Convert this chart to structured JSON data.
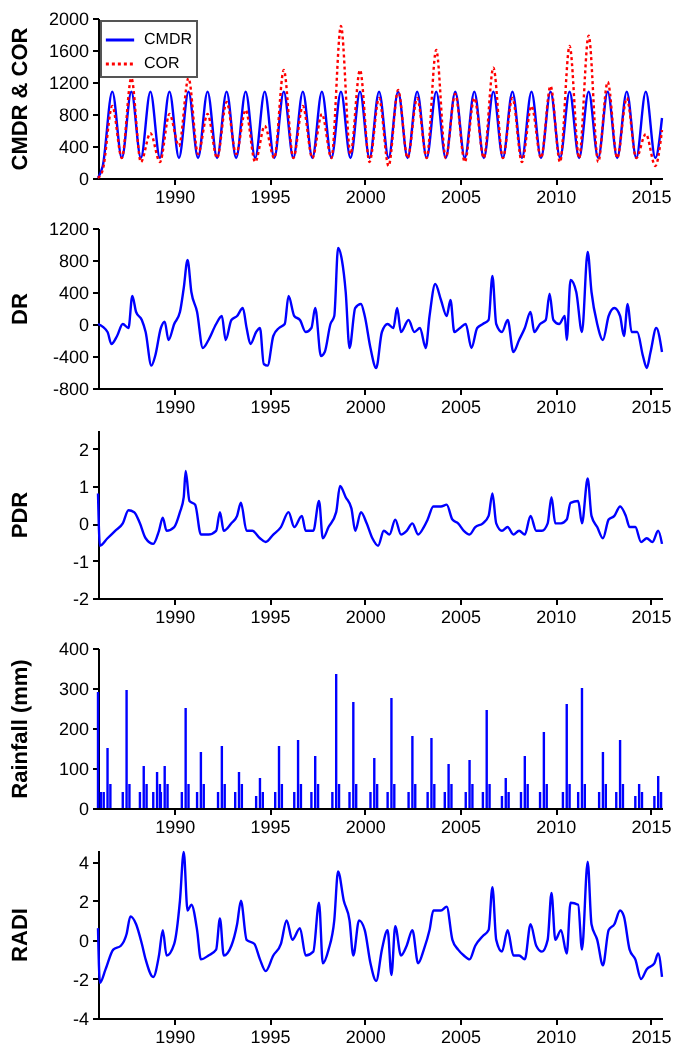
{
  "chart_data": [
    {
      "type": "line",
      "ylabel": "CMDR & COR",
      "xlim": [
        1986,
        2015.6
      ],
      "xticks": [
        1990,
        1995,
        2000,
        2005,
        2010,
        2015
      ],
      "ylim": [
        0,
        2000
      ],
      "yticks": [
        0,
        400,
        800,
        1200,
        1600,
        2000
      ],
      "legend": "top left",
      "x": [
        1986,
        1986.25,
        1986.75,
        1987.25,
        1987.75,
        1988.25,
        1988.75,
        1989.25,
        1989.75,
        1990.25,
        1990.75,
        1991.25,
        1991.75,
        1992.25,
        1992.75,
        1993.25,
        1993.75,
        1994.25,
        1994.75,
        1995.25,
        1995.75,
        1996.25,
        1996.75,
        1997.25,
        1997.75,
        1998.25,
        1998.75,
        1999.25,
        1999.75,
        2000.25,
        2000.75,
        2001.25,
        2001.75,
        2002.25,
        2002.75,
        2003.25,
        2003.75,
        2004.25,
        2004.75,
        2005.25,
        2005.75,
        2006.25,
        2006.75,
        2007.25,
        2007.75,
        2008.25,
        2008.75,
        2009.25,
        2009.75,
        2010.25,
        2010.75,
        2011.25,
        2011.75,
        2012.25,
        2012.75,
        2013.25,
        2013.75,
        2014.25,
        2014.75,
        2015.25,
        2015.6
      ],
      "series": [
        {
          "name": "CMDR",
          "color": "#0000ff",
          "line_style": "solid",
          "values": [
            0,
            150,
            1080,
            250,
            1080,
            250,
            1080,
            250,
            1080,
            250,
            1080,
            250,
            1080,
            250,
            1080,
            250,
            1080,
            250,
            1080,
            250,
            1080,
            250,
            1080,
            250,
            1080,
            250,
            1080,
            250,
            1080,
            250,
            1080,
            250,
            1080,
            250,
            1080,
            250,
            1080,
            250,
            1080,
            250,
            1080,
            250,
            1080,
            250,
            1080,
            250,
            1080,
            250,
            1080,
            250,
            1080,
            250,
            1080,
            250,
            1080,
            250,
            1080,
            250,
            1080,
            250,
            750
          ]
        },
        {
          "name": "COR",
          "color": "#ff0000",
          "line_style": "dotted",
          "values": [
            0,
            100,
            900,
            250,
            1250,
            200,
            560,
            200,
            800,
            400,
            1250,
            300,
            800,
            250,
            950,
            300,
            850,
            200,
            650,
            250,
            1350,
            250,
            900,
            250,
            800,
            250,
            1900,
            300,
            1350,
            200,
            1000,
            150,
            1100,
            250,
            1000,
            250,
            1600,
            250,
            1050,
            200,
            1000,
            250,
            1380,
            250,
            1000,
            200,
            900,
            250,
            1150,
            200,
            1650,
            250,
            1780,
            200,
            1200,
            250,
            1000,
            250,
            550,
            150,
            600
          ]
        }
      ]
    },
    {
      "type": "line",
      "ylabel": "DR",
      "xlim": [
        1986,
        2015.6
      ],
      "xticks": [
        1990,
        1995,
        2000,
        2005,
        2010,
        2015
      ],
      "ylim": [
        -800,
        1200
      ],
      "yticks": [
        -800,
        -400,
        0,
        400,
        800,
        1200
      ],
      "x": [
        1986.0,
        1986.5,
        1986.7,
        1987.0,
        1987.3,
        1987.6,
        1987.8,
        1988.0,
        1988.3,
        1988.5,
        1988.8,
        1989.0,
        1989.3,
        1989.5,
        1989.7,
        1990.0,
        1990.3,
        1990.5,
        1990.7,
        1990.9,
        1991.2,
        1991.5,
        1991.8,
        1992.2,
        1992.5,
        1992.7,
        1993.0,
        1993.3,
        1993.6,
        1993.8,
        1994.0,
        1994.3,
        1994.5,
        1994.7,
        1994.9,
        1995.2,
        1995.5,
        1995.8,
        1996.0,
        1996.3,
        1996.6,
        1996.9,
        1997.2,
        1997.4,
        1997.7,
        1997.9,
        1998.2,
        1998.4,
        1998.6,
        1998.8,
        1999.0,
        1999.2,
        1999.5,
        1999.8,
        2000.0,
        2000.3,
        2000.6,
        2000.9,
        2001.2,
        2001.5,
        2001.7,
        2001.9,
        2002.3,
        2002.6,
        2002.9,
        2003.2,
        2003.4,
        2003.7,
        2004.0,
        2004.3,
        2004.5,
        2004.7,
        2005.0,
        2005.3,
        2005.6,
        2005.9,
        2006.2,
        2006.5,
        2006.7,
        2006.9,
        2007.2,
        2007.5,
        2007.8,
        2008.1,
        2008.4,
        2008.7,
        2008.9,
        2009.2,
        2009.5,
        2009.7,
        2009.9,
        2010.2,
        2010.5,
        2010.6,
        2010.8,
        2011.1,
        2011.4,
        2011.7,
        2011.9,
        2012.2,
        2012.5,
        2012.8,
        2013.1,
        2013.4,
        2013.6,
        2013.8,
        2014.0,
        2014.3,
        2014.6,
        2014.8,
        2015.0,
        2015.3,
        2015.6
      ],
      "series": [
        {
          "color": "#0000ff",
          "values": [
            0,
            -100,
            -250,
            -150,
            0,
            -50,
            350,
            150,
            50,
            -100,
            -520,
            -400,
            -50,
            30,
            -200,
            0,
            150,
            450,
            800,
            400,
            150,
            -300,
            -200,
            0,
            100,
            -200,
            50,
            100,
            200,
            -50,
            -250,
            -100,
            -50,
            -500,
            -520,
            -150,
            -50,
            0,
            350,
            100,
            50,
            -100,
            -50,
            200,
            -400,
            -350,
            0,
            100,
            950,
            800,
            400,
            -300,
            200,
            250,
            100,
            -300,
            -550,
            -100,
            0,
            -50,
            200,
            -100,
            50,
            -100,
            -50,
            -300,
            100,
            500,
            300,
            100,
            300,
            -100,
            -50,
            0,
            -300,
            -50,
            0,
            50,
            600,
            0,
            -100,
            50,
            -350,
            -200,
            -50,
            150,
            -100,
            0,
            50,
            380,
            50,
            0,
            100,
            -200,
            550,
            400,
            -100,
            900,
            400,
            0,
            -200,
            100,
            200,
            100,
            -150,
            250,
            -100,
            -100,
            -400,
            -550,
            -350,
            -50,
            -350
          ]
        }
      ]
    },
    {
      "type": "line",
      "ylabel": "PDR",
      "xlim": [
        1986,
        2015.6
      ],
      "xticks": [
        1990,
        1995,
        2000,
        2005,
        2010,
        2015
      ],
      "ylim": [
        -2,
        2.5
      ],
      "yticks": [
        -2,
        -1,
        0,
        1,
        2
      ],
      "x": [
        1986.0,
        1986.1,
        1986.5,
        1986.9,
        1987.3,
        1987.6,
        1987.9,
        1988.2,
        1988.5,
        1988.9,
        1989.2,
        1989.4,
        1989.6,
        1990.0,
        1990.3,
        1990.5,
        1990.6,
        1990.8,
        1991.1,
        1991.4,
        1991.8,
        1992.2,
        1992.4,
        1992.6,
        1993.0,
        1993.3,
        1993.5,
        1993.8,
        1994.1,
        1994.5,
        1994.8,
        1995.2,
        1995.6,
        1996.0,
        1996.3,
        1996.7,
        1996.9,
        1997.3,
        1997.6,
        1997.8,
        1998.1,
        1998.5,
        1998.7,
        1999.0,
        1999.3,
        1999.5,
        1999.8,
        2000.1,
        2000.4,
        2000.7,
        2001.0,
        2001.3,
        2001.6,
        2001.9,
        2002.2,
        2002.5,
        2002.8,
        2003.1,
        2003.3,
        2003.6,
        2004.0,
        2004.3,
        2004.6,
        2004.9,
        2005.2,
        2005.5,
        2005.8,
        2006.2,
        2006.5,
        2006.7,
        2006.9,
        2007.2,
        2007.5,
        2007.8,
        2008.1,
        2008.4,
        2008.7,
        2009.0,
        2009.3,
        2009.6,
        2009.8,
        2010.0,
        2010.3,
        2010.6,
        2010.8,
        2011.2,
        2011.4,
        2011.7,
        2011.9,
        2012.2,
        2012.5,
        2012.8,
        2013.1,
        2013.4,
        2013.7,
        2013.9,
        2014.2,
        2014.5,
        2014.8,
        2015.1,
        2015.4,
        2015.6
      ],
      "series": [
        {
          "color": "#0000ff",
          "values": [
            0.8,
            -0.6,
            -0.4,
            -0.2,
            0,
            0.35,
            0.3,
            0,
            -0.4,
            -0.55,
            -0.2,
            0.15,
            -0.2,
            -0.1,
            0.3,
            0.7,
            1.4,
            0.6,
            0.5,
            -0.3,
            -0.3,
            -0.2,
            0.3,
            -0.2,
            0,
            0.2,
            0.55,
            -0.2,
            -0.2,
            -0.4,
            -0.5,
            -0.3,
            -0.1,
            0.3,
            -0.1,
            0.2,
            -0.2,
            -0.2,
            0.6,
            -0.4,
            -0.1,
            0.3,
            1.0,
            0.7,
            0.4,
            -0.2,
            0.3,
            0,
            -0.4,
            -0.6,
            -0.2,
            -0.3,
            0.1,
            -0.3,
            -0.2,
            0,
            -0.3,
            -0.1,
            0.1,
            0.45,
            0.45,
            0.5,
            0.1,
            0,
            -0.2,
            -0.3,
            -0.1,
            0,
            0.2,
            0.8,
            0,
            -0.2,
            -0.1,
            -0.3,
            -0.2,
            -0.3,
            0.2,
            -0.2,
            -0.2,
            0,
            0.7,
            0,
            0,
            0.1,
            0.55,
            0.6,
            0,
            1.2,
            0.2,
            -0.1,
            -0.4,
            0.1,
            0.2,
            0.45,
            0.2,
            -0.1,
            -0.1,
            -0.5,
            -0.4,
            -0.5,
            -0.2,
            -0.55
          ]
        }
      ]
    },
    {
      "type": "bar",
      "ylabel": "Rainfall (mm)",
      "xlim": [
        1986,
        2015.6
      ],
      "xticks": [
        1990,
        1995,
        2000,
        2005,
        2010,
        2015
      ],
      "ylim": [
        0,
        400
      ],
      "yticks": [
        0,
        100,
        200,
        300,
        400
      ],
      "color": "#0000ff",
      "x": [
        1986.0,
        1986.15,
        1986.3,
        1986.5,
        1986.65,
        1987.3,
        1987.5,
        1987.65,
        1988.2,
        1988.4,
        1988.55,
        1988.9,
        1989.1,
        1989.25,
        1989.3,
        1989.5,
        1989.65,
        1990.4,
        1990.6,
        1990.75,
        1991.2,
        1991.4,
        1991.55,
        1992.3,
        1992.5,
        1992.65,
        1993.2,
        1993.4,
        1993.55,
        1994.3,
        1994.5,
        1994.65,
        1995.3,
        1995.5,
        1995.65,
        1996.3,
        1996.5,
        1996.65,
        1997.2,
        1997.4,
        1997.55,
        1998.3,
        1998.5,
        1998.65,
        1999.2,
        1999.4,
        1999.55,
        2000.3,
        2000.5,
        2000.65,
        2001.2,
        2001.4,
        2001.55,
        2002.3,
        2002.5,
        2002.65,
        2003.3,
        2003.5,
        2003.65,
        2004.2,
        2004.4,
        2004.55,
        2005.3,
        2005.5,
        2005.65,
        2006.2,
        2006.4,
        2006.55,
        2007.2,
        2007.4,
        2007.55,
        2008.2,
        2008.4,
        2008.55,
        2009.2,
        2009.4,
        2009.55,
        2010.4,
        2010.6,
        2010.75,
        2011.2,
        2011.4,
        2011.55,
        2012.3,
        2012.5,
        2012.65,
        2013.2,
        2013.4,
        2013.55,
        2014.2,
        2014.4,
        2014.55,
        2015.2,
        2015.4,
        2015.55
      ],
      "values": [
        290,
        40,
        40,
        150,
        60,
        40,
        295,
        60,
        40,
        105,
        60,
        40,
        90,
        60,
        40,
        105,
        60,
        40,
        250,
        60,
        40,
        140,
        60,
        40,
        155,
        60,
        40,
        90,
        60,
        30,
        75,
        40,
        40,
        155,
        60,
        40,
        170,
        60,
        40,
        130,
        60,
        40,
        335,
        60,
        40,
        265,
        60,
        40,
        125,
        60,
        40,
        275,
        60,
        40,
        180,
        60,
        40,
        175,
        60,
        40,
        110,
        60,
        40,
        120,
        60,
        40,
        245,
        60,
        30,
        75,
        40,
        40,
        130,
        60,
        40,
        190,
        60,
        40,
        260,
        60,
        40,
        300,
        60,
        40,
        140,
        60,
        40,
        170,
        60,
        30,
        60,
        40,
        30,
        80,
        40
      ]
    },
    {
      "type": "line",
      "ylabel": "RADI",
      "xlim": [
        1986,
        2015.6
      ],
      "xticks": [
        1990,
        1995,
        2000,
        2005,
        2010,
        2015
      ],
      "ylim": [
        -4,
        4.6
      ],
      "yticks": [
        -4,
        -2,
        0,
        2,
        4
      ],
      "x": [
        1986.0,
        1986.1,
        1986.4,
        1986.8,
        1987.2,
        1987.5,
        1987.7,
        1988.0,
        1988.3,
        1988.5,
        1988.9,
        1989.2,
        1989.4,
        1989.6,
        1990.0,
        1990.3,
        1990.5,
        1990.7,
        1990.9,
        1991.2,
        1991.4,
        1991.8,
        1992.2,
        1992.4,
        1992.6,
        1993.0,
        1993.3,
        1993.5,
        1993.8,
        1994.2,
        1994.5,
        1994.8,
        1995.2,
        1995.6,
        1995.9,
        1996.2,
        1996.6,
        1996.9,
        1997.3,
        1997.6,
        1997.8,
        1998.1,
        1998.4,
        1998.6,
        1998.9,
        1999.2,
        1999.4,
        1999.7,
        2000.0,
        2000.3,
        2000.6,
        2000.9,
        2001.2,
        2001.4,
        2001.6,
        2001.9,
        2002.2,
        2002.5,
        2002.8,
        2003.1,
        2003.4,
        2003.6,
        2004.0,
        2004.3,
        2004.6,
        2004.9,
        2005.2,
        2005.5,
        2005.8,
        2006.2,
        2006.5,
        2006.7,
        2006.9,
        2007.2,
        2007.5,
        2007.8,
        2008.1,
        2008.4,
        2008.7,
        2009.0,
        2009.3,
        2009.6,
        2009.8,
        2010.0,
        2010.3,
        2010.6,
        2010.8,
        2011.2,
        2011.4,
        2011.7,
        2011.9,
        2012.2,
        2012.5,
        2012.8,
        2013.1,
        2013.4,
        2013.6,
        2013.9,
        2014.2,
        2014.5,
        2014.8,
        2015.2,
        2015.4,
        2015.6
      ],
      "series": [
        {
          "color": "#0000ff",
          "values": [
            0.6,
            -2.2,
            -1.5,
            -0.5,
            -0.3,
            0.3,
            1.2,
            0.8,
            -0.2,
            -1.0,
            -1.9,
            -0.8,
            0.5,
            -0.8,
            -0.2,
            2.0,
            4.5,
            1.5,
            1.8,
            0.5,
            -1.0,
            -0.8,
            -0.5,
            1.1,
            -0.8,
            -0.3,
            0.8,
            2.0,
            0,
            -0.2,
            -1.0,
            -1.6,
            -0.8,
            -0.2,
            1.0,
            0,
            0.6,
            -0.8,
            -0.6,
            1.9,
            -1.2,
            -0.5,
            1.0,
            3.5,
            2.0,
            1.0,
            -0.8,
            1.0,
            0.5,
            -1.2,
            -2.1,
            -0.5,
            0.5,
            -1.8,
            0.7,
            -0.8,
            -0.3,
            0.5,
            -1.2,
            -0.5,
            0.5,
            1.5,
            1.5,
            1.7,
            0,
            -0.5,
            -0.8,
            -1.0,
            -0.3,
            0.2,
            0.5,
            2.7,
            0,
            -0.6,
            0.5,
            -0.8,
            -0.8,
            -1.0,
            0.8,
            -0.3,
            -0.6,
            0,
            2.4,
            0,
            0.5,
            -0.7,
            1.9,
            1.8,
            -0.5,
            4.0,
            0.8,
            0,
            -1.3,
            0.5,
            0.8,
            1.5,
            1.2,
            -0.5,
            -1.0,
            -2.0,
            -1.5,
            -1.2,
            -0.7,
            -1.9
          ]
        }
      ]
    }
  ]
}
